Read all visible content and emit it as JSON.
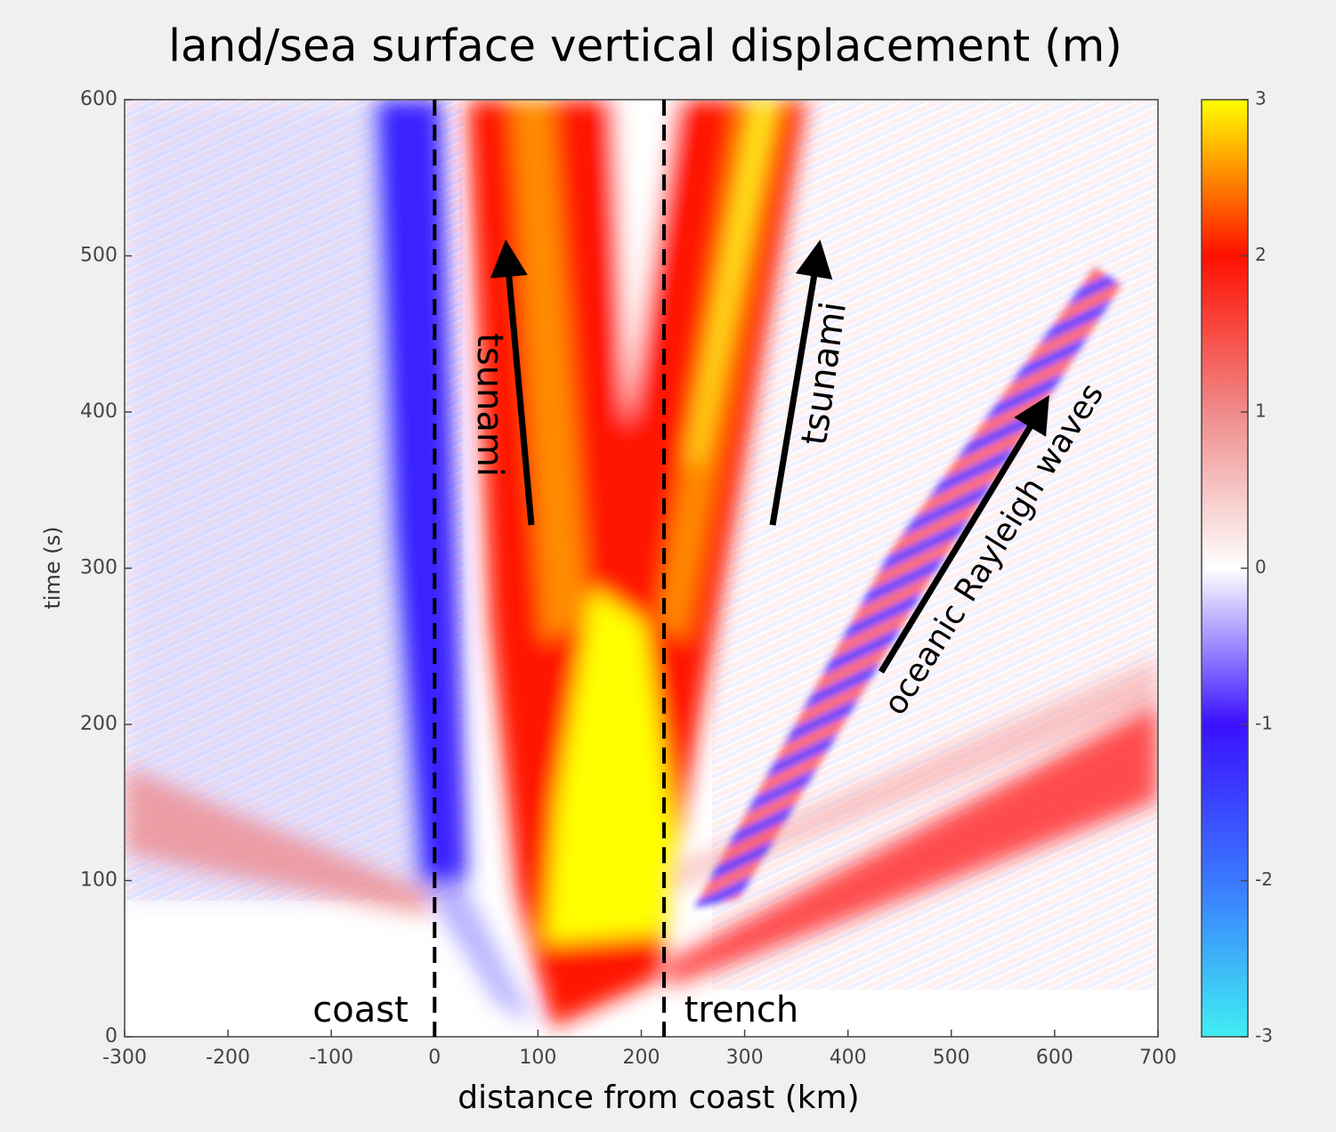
{
  "chart_data": {
    "type": "heatmap",
    "title": "land/sea surface vertical displacement (m)",
    "x_label": "distance from coast (km)",
    "y_label": "time (s)",
    "xlim": [
      -300,
      700
    ],
    "xticks": [
      -300,
      -200,
      -100,
      0,
      100,
      200,
      300,
      400,
      500,
      600,
      700
    ],
    "ylim": [
      0,
      600
    ],
    "yticks": [
      0,
      100,
      200,
      300,
      400,
      500,
      600
    ],
    "vlines": [
      0,
      222
    ],
    "colorbar": {
      "clim": [
        -3,
        3
      ],
      "ticks": [
        -3,
        -2,
        -1,
        0,
        1,
        2,
        3
      ],
      "colors": [
        "#40eef2",
        "#3a78ff",
        "#3a10ff",
        "#ffffff",
        "#f08a8a",
        "#ff1000",
        "#ffff00"
      ]
    },
    "annotations": [
      "coast",
      "trench",
      "tsunami",
      "tsunami",
      "oceanic Rayleigh waves"
    ]
  }
}
